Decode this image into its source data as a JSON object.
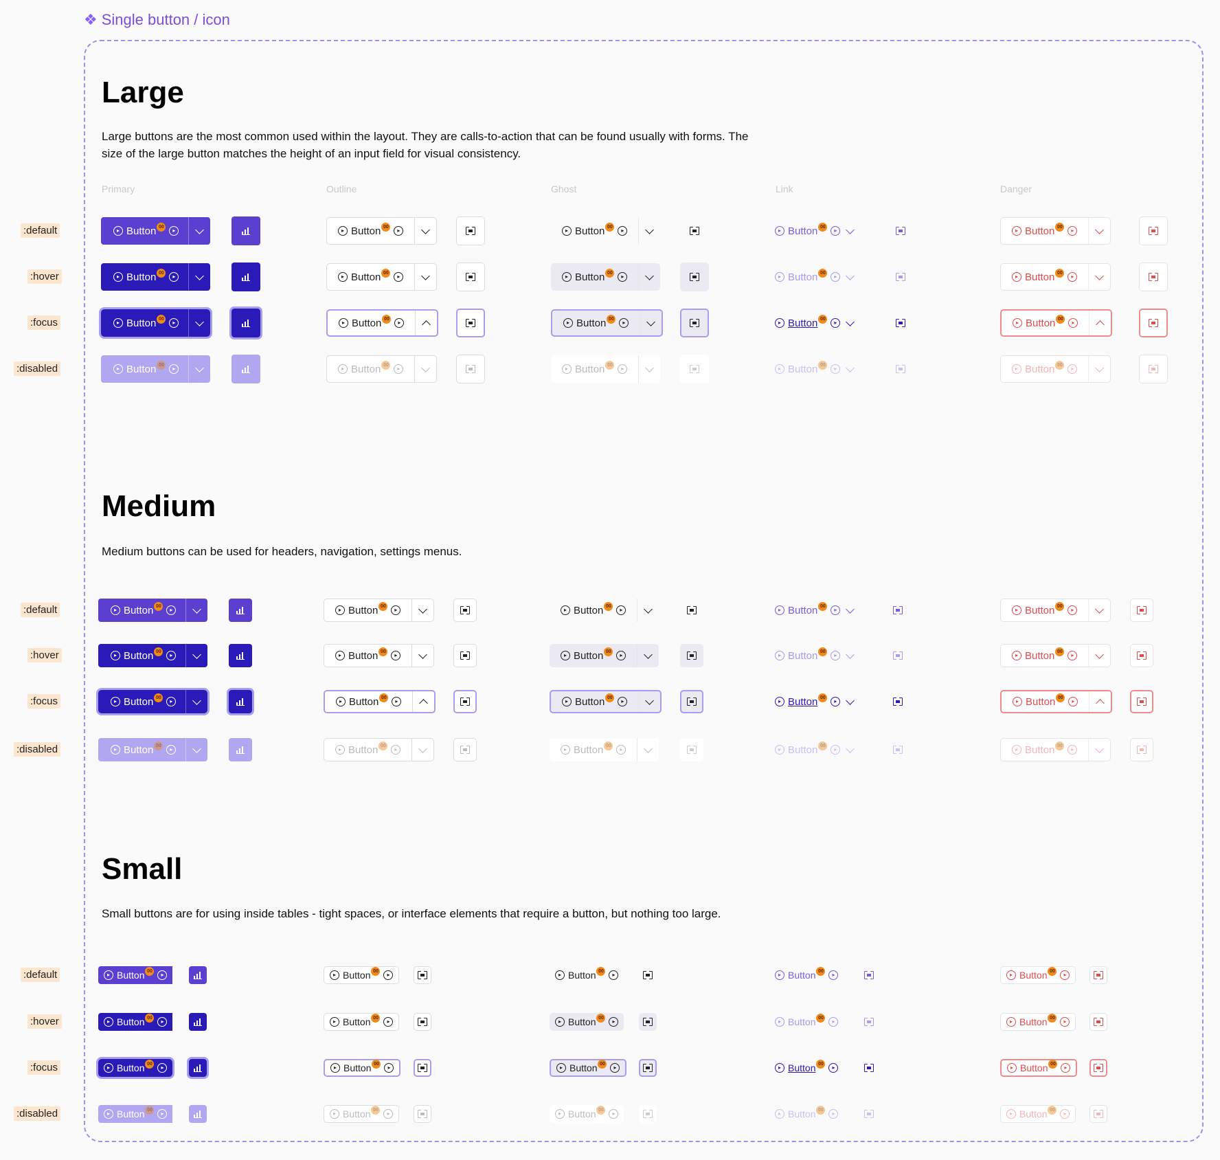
{
  "frame_title": "Single button / icon",
  "columns": [
    "Primary",
    "Outline",
    "Ghost",
    "Link",
    "Danger"
  ],
  "states": [
    ":default",
    ":hover",
    ":focus",
    ":disabled"
  ],
  "button_label": "Button",
  "badge": "00",
  "sections": {
    "large": {
      "title": "Large",
      "description": "Large buttons are the most common used within the layout. They are calls-to-action that can be found usually with forms. The size of the large button matches the height of an input field for visual consistency."
    },
    "medium": {
      "title": "Medium",
      "description": "Medium buttons can be used for headers, navigation, settings menus."
    },
    "small": {
      "title": "Small",
      "description": "Small buttons are for using inside tables - tight spaces, or interface elements that require a button, but nothing too large."
    }
  },
  "colors": {
    "primary": "#5b3fd0",
    "primary_hover": "#2a1ab8",
    "focus_ring": "#a89ef0",
    "danger": "#e04a4a",
    "state_label_bg": "#fde6cf",
    "frame_border": "#9c94e8"
  },
  "icons": [
    "play-circle-icon",
    "chevron-down-icon",
    "chevron-up-icon",
    "scan-icon",
    "bar-chart-icon",
    "component-icon"
  ]
}
